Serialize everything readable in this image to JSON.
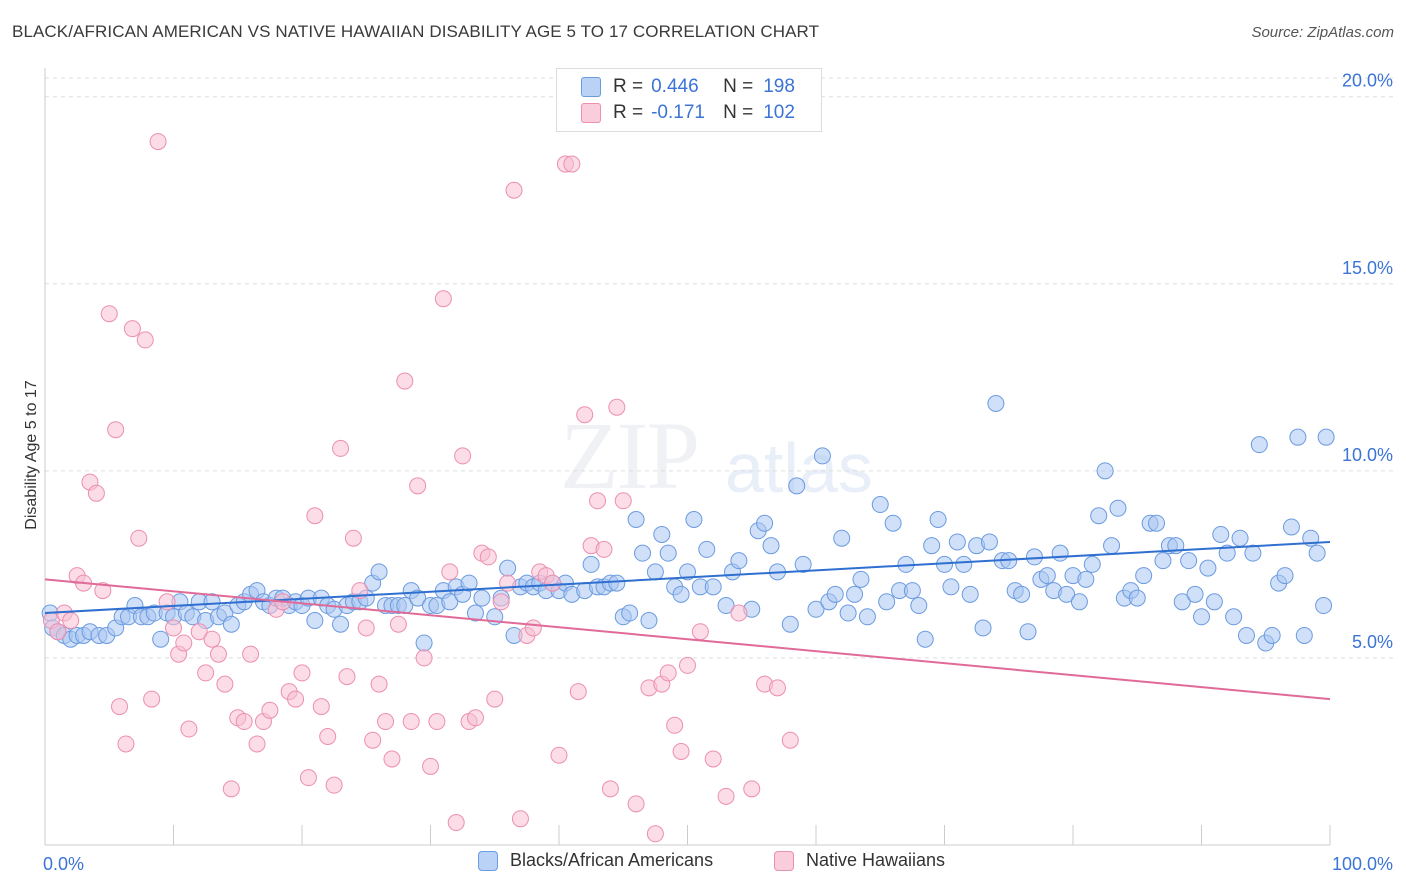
{
  "header": {
    "title": "BLACK/AFRICAN AMERICAN VS NATIVE HAWAIIAN DISABILITY AGE 5 TO 17 CORRELATION CHART",
    "source": "Source: ZipAtlas.com"
  },
  "watermark": {
    "part1": "ZIP",
    "part2": "atlas"
  },
  "legend_top": {
    "rows": [
      {
        "r_label": "R =",
        "r_value": "0.446",
        "n_label": "N =",
        "n_value": "198"
      },
      {
        "r_label": "R =",
        "r_value": "-0.171",
        "n_label": "N =",
        "n_value": "102"
      }
    ]
  },
  "colors": {
    "blue_fill": "#a9c7f2",
    "blue_stroke": "#6b9be0",
    "blue_line": "#2f6fd0",
    "pink_fill": "#f7c0d3",
    "pink_stroke": "#ec8fb0",
    "pink_line": "#e06a98",
    "tick_text": "#3b74d6",
    "grid": "#dddddd"
  },
  "chart_data": {
    "type": "scatter",
    "title": "BLACK/AFRICAN AMERICAN VS NATIVE HAWAIIAN DISABILITY AGE 5 TO 17 CORRELATION CHART",
    "xlabel": "",
    "ylabel": "Disability Age 5 to 17",
    "xlim": [
      0,
      100
    ],
    "ylim": [
      0,
      20.5
    ],
    "x_tick_labels": [
      "0.0%",
      "100.0%"
    ],
    "y_ticks": [
      5,
      10,
      15,
      20
    ],
    "y_tick_labels": [
      "5.0%",
      "10.0%",
      "15.0%",
      "20.0%"
    ],
    "grid": true,
    "legend_position": "bottom",
    "series": [
      {
        "name": "Blacks/African Americans",
        "R": 0.446,
        "N": 198,
        "trend": [
          [
            0,
            6.2
          ],
          [
            100,
            8.1
          ]
        ],
        "points": [
          [
            0.4,
            6.2
          ],
          [
            0.6,
            5.8
          ],
          [
            1.0,
            5.7
          ],
          [
            1.5,
            5.6
          ],
          [
            2.0,
            5.5
          ],
          [
            2.5,
            5.6
          ],
          [
            3.0,
            5.6
          ],
          [
            3.5,
            5.7
          ],
          [
            4.2,
            5.6
          ],
          [
            4.8,
            5.6
          ],
          [
            5.5,
            5.8
          ],
          [
            6.0,
            6.1
          ],
          [
            6.5,
            6.1
          ],
          [
            7.0,
            6.4
          ],
          [
            7.5,
            6.1
          ],
          [
            8.0,
            6.1
          ],
          [
            8.5,
            6.2
          ],
          [
            9.0,
            5.5
          ],
          [
            9.5,
            6.2
          ],
          [
            10.0,
            6.1
          ],
          [
            10.5,
            6.5
          ],
          [
            11.0,
            6.2
          ],
          [
            11.5,
            6.1
          ],
          [
            12.0,
            6.5
          ],
          [
            12.5,
            6.0
          ],
          [
            13.0,
            6.5
          ],
          [
            13.5,
            6.1
          ],
          [
            14.0,
            6.2
          ],
          [
            14.5,
            5.9
          ],
          [
            15.0,
            6.4
          ],
          [
            15.5,
            6.5
          ],
          [
            16.0,
            6.7
          ],
          [
            16.5,
            6.8
          ],
          [
            17.0,
            6.5
          ],
          [
            17.5,
            6.4
          ],
          [
            18.0,
            6.6
          ],
          [
            18.5,
            6.6
          ],
          [
            19.0,
            6.4
          ],
          [
            19.5,
            6.5
          ],
          [
            20.0,
            6.4
          ],
          [
            20.5,
            6.6
          ],
          [
            21.0,
            6.0
          ],
          [
            21.5,
            6.6
          ],
          [
            22.0,
            6.4
          ],
          [
            22.5,
            6.3
          ],
          [
            23.0,
            5.9
          ],
          [
            23.5,
            6.4
          ],
          [
            24.0,
            6.5
          ],
          [
            24.5,
            6.5
          ],
          [
            25.0,
            6.6
          ],
          [
            25.5,
            7.0
          ],
          [
            26.0,
            7.3
          ],
          [
            26.5,
            6.4
          ],
          [
            27.0,
            6.4
          ],
          [
            27.5,
            6.4
          ],
          [
            28.0,
            6.4
          ],
          [
            28.5,
            6.8
          ],
          [
            29.0,
            6.6
          ],
          [
            29.5,
            5.4
          ],
          [
            30.0,
            6.4
          ],
          [
            30.5,
            6.4
          ],
          [
            31.0,
            6.8
          ],
          [
            31.5,
            6.5
          ],
          [
            32.0,
            6.9
          ],
          [
            32.5,
            6.7
          ],
          [
            33.0,
            7.0
          ],
          [
            33.5,
            6.2
          ],
          [
            34.0,
            6.6
          ],
          [
            35.0,
            6.1
          ],
          [
            35.5,
            6.6
          ],
          [
            36.0,
            7.4
          ],
          [
            36.5,
            5.6
          ],
          [
            37.0,
            6.9
          ],
          [
            37.5,
            7.0
          ],
          [
            38.0,
            6.9
          ],
          [
            38.5,
            7.0
          ],
          [
            39.0,
            6.8
          ],
          [
            39.5,
            7.0
          ],
          [
            40.0,
            6.8
          ],
          [
            40.5,
            7.0
          ],
          [
            41.0,
            6.7
          ],
          [
            42.0,
            6.8
          ],
          [
            42.5,
            7.5
          ],
          [
            43.0,
            6.9
          ],
          [
            43.5,
            6.9
          ],
          [
            44.0,
            7.0
          ],
          [
            44.5,
            7.0
          ],
          [
            45.0,
            6.1
          ],
          [
            45.5,
            6.2
          ],
          [
            46.0,
            8.7
          ],
          [
            46.5,
            7.8
          ],
          [
            47.0,
            6.0
          ],
          [
            47.5,
            7.3
          ],
          [
            48.0,
            8.3
          ],
          [
            48.5,
            7.8
          ],
          [
            49.0,
            6.9
          ],
          [
            49.5,
            6.7
          ],
          [
            50.0,
            7.3
          ],
          [
            50.5,
            8.7
          ],
          [
            51.0,
            6.9
          ],
          [
            51.5,
            7.9
          ],
          [
            52.0,
            6.9
          ],
          [
            53.0,
            6.4
          ],
          [
            53.5,
            7.3
          ],
          [
            54.0,
            7.6
          ],
          [
            55.0,
            6.3
          ],
          [
            55.5,
            8.4
          ],
          [
            56.0,
            8.6
          ],
          [
            56.5,
            8.0
          ],
          [
            57.0,
            7.3
          ],
          [
            58.0,
            5.9
          ],
          [
            58.5,
            9.6
          ],
          [
            59.0,
            7.5
          ],
          [
            60.0,
            6.3
          ],
          [
            60.5,
            10.4
          ],
          [
            61.0,
            6.5
          ],
          [
            61.5,
            6.7
          ],
          [
            62.0,
            8.2
          ],
          [
            62.5,
            6.2
          ],
          [
            63.0,
            6.7
          ],
          [
            63.5,
            7.1
          ],
          [
            64.0,
            6.1
          ],
          [
            65.0,
            9.1
          ],
          [
            65.5,
            6.5
          ],
          [
            66.0,
            8.6
          ],
          [
            66.5,
            6.8
          ],
          [
            67.0,
            7.5
          ],
          [
            67.5,
            6.8
          ],
          [
            68.0,
            6.4
          ],
          [
            68.5,
            5.5
          ],
          [
            69.0,
            8.0
          ],
          [
            69.5,
            8.7
          ],
          [
            70.0,
            7.5
          ],
          [
            70.5,
            6.9
          ],
          [
            71.0,
            8.1
          ],
          [
            71.5,
            7.5
          ],
          [
            72.0,
            6.7
          ],
          [
            72.5,
            8.0
          ],
          [
            73.0,
            5.8
          ],
          [
            73.5,
            8.1
          ],
          [
            74.0,
            11.8
          ],
          [
            74.5,
            7.6
          ],
          [
            75.0,
            7.6
          ],
          [
            75.5,
            6.8
          ],
          [
            76.0,
            6.7
          ],
          [
            76.5,
            5.7
          ],
          [
            77.0,
            7.7
          ],
          [
            77.5,
            7.1
          ],
          [
            78.0,
            7.2
          ],
          [
            78.5,
            6.8
          ],
          [
            79.0,
            7.8
          ],
          [
            79.5,
            6.7
          ],
          [
            80.0,
            7.2
          ],
          [
            80.5,
            6.5
          ],
          [
            81.0,
            7.1
          ],
          [
            81.5,
            7.5
          ],
          [
            82.0,
            8.8
          ],
          [
            82.5,
            10.0
          ],
          [
            83.0,
            8.0
          ],
          [
            83.5,
            9.0
          ],
          [
            84.0,
            6.6
          ],
          [
            84.5,
            6.8
          ],
          [
            85.0,
            6.6
          ],
          [
            85.5,
            7.2
          ],
          [
            86.0,
            8.6
          ],
          [
            86.5,
            8.6
          ],
          [
            87.0,
            7.6
          ],
          [
            87.5,
            8.0
          ],
          [
            88.0,
            8.0
          ],
          [
            88.5,
            6.5
          ],
          [
            89.0,
            7.6
          ],
          [
            89.5,
            6.7
          ],
          [
            90.0,
            6.1
          ],
          [
            90.5,
            7.4
          ],
          [
            91.0,
            6.5
          ],
          [
            91.5,
            8.3
          ],
          [
            92.0,
            7.8
          ],
          [
            92.5,
            6.1
          ],
          [
            93.0,
            8.2
          ],
          [
            93.5,
            5.6
          ],
          [
            94.0,
            7.8
          ],
          [
            94.5,
            10.7
          ],
          [
            95.0,
            5.4
          ],
          [
            95.5,
            5.6
          ],
          [
            96.0,
            7.0
          ],
          [
            96.5,
            7.2
          ],
          [
            97.0,
            8.5
          ],
          [
            97.5,
            10.9
          ],
          [
            98.0,
            5.6
          ],
          [
            98.5,
            8.2
          ],
          [
            99.0,
            7.8
          ],
          [
            99.5,
            6.4
          ],
          [
            99.7,
            10.9
          ]
        ]
      },
      {
        "name": "Native Hawaiians",
        "R": -0.171,
        "N": 102,
        "trend": [
          [
            0,
            7.1
          ],
          [
            100,
            3.9
          ]
        ],
        "points": [
          [
            0.5,
            6.0
          ],
          [
            1.0,
            5.7
          ],
          [
            1.5,
            6.2
          ],
          [
            2.0,
            6.0
          ],
          [
            2.5,
            7.2
          ],
          [
            3.0,
            7.0
          ],
          [
            3.5,
            9.7
          ],
          [
            4.0,
            9.4
          ],
          [
            4.5,
            6.8
          ],
          [
            5.0,
            14.2
          ],
          [
            5.5,
            11.1
          ],
          [
            5.8,
            3.7
          ],
          [
            6.3,
            2.7
          ],
          [
            6.8,
            13.8
          ],
          [
            7.3,
            8.2
          ],
          [
            7.8,
            13.5
          ],
          [
            8.3,
            3.9
          ],
          [
            8.8,
            18.8
          ],
          [
            9.5,
            6.5
          ],
          [
            10.0,
            5.8
          ],
          [
            10.4,
            5.1
          ],
          [
            10.8,
            5.4
          ],
          [
            11.2,
            3.1
          ],
          [
            12.0,
            5.7
          ],
          [
            12.5,
            4.6
          ],
          [
            13.0,
            5.5
          ],
          [
            13.5,
            5.1
          ],
          [
            14.0,
            4.3
          ],
          [
            14.5,
            1.5
          ],
          [
            15.0,
            3.4
          ],
          [
            15.5,
            3.3
          ],
          [
            16.0,
            5.1
          ],
          [
            16.5,
            2.7
          ],
          [
            17.0,
            3.3
          ],
          [
            17.5,
            3.6
          ],
          [
            18.0,
            6.3
          ],
          [
            18.5,
            6.5
          ],
          [
            19.0,
            4.1
          ],
          [
            19.5,
            3.9
          ],
          [
            20.0,
            4.6
          ],
          [
            20.5,
            1.8
          ],
          [
            21.0,
            8.8
          ],
          [
            21.5,
            3.7
          ],
          [
            22.0,
            2.9
          ],
          [
            22.5,
            1.6
          ],
          [
            23.0,
            10.6
          ],
          [
            23.5,
            4.5
          ],
          [
            24.0,
            8.2
          ],
          [
            24.5,
            6.8
          ],
          [
            25.0,
            5.8
          ],
          [
            25.5,
            2.8
          ],
          [
            26.0,
            4.3
          ],
          [
            26.5,
            3.3
          ],
          [
            27.0,
            2.3
          ],
          [
            27.5,
            5.9
          ],
          [
            28.0,
            12.4
          ],
          [
            28.5,
            3.3
          ],
          [
            29.0,
            9.6
          ],
          [
            29.5,
            5.0
          ],
          [
            30.0,
            2.1
          ],
          [
            30.5,
            3.3
          ],
          [
            31.0,
            14.6
          ],
          [
            31.5,
            7.3
          ],
          [
            32.0,
            0.6
          ],
          [
            32.5,
            10.4
          ],
          [
            33.0,
            3.3
          ],
          [
            33.5,
            3.4
          ],
          [
            34.0,
            7.8
          ],
          [
            34.5,
            7.7
          ],
          [
            35.0,
            3.9
          ],
          [
            35.5,
            6.5
          ],
          [
            36.0,
            7.0
          ],
          [
            36.5,
            17.5
          ],
          [
            37.0,
            0.7
          ],
          [
            37.5,
            5.6
          ],
          [
            38.0,
            5.8
          ],
          [
            38.5,
            7.3
          ],
          [
            39.0,
            7.2
          ],
          [
            39.5,
            7.0
          ],
          [
            40.0,
            2.4
          ],
          [
            40.5,
            18.2
          ],
          [
            41.0,
            18.2
          ],
          [
            41.5,
            4.1
          ],
          [
            42.0,
            11.5
          ],
          [
            42.5,
            8.0
          ],
          [
            43.0,
            9.2
          ],
          [
            43.5,
            7.9
          ],
          [
            44.0,
            1.5
          ],
          [
            44.5,
            11.7
          ],
          [
            45.0,
            9.2
          ],
          [
            46.0,
            1.1
          ],
          [
            47.0,
            4.2
          ],
          [
            47.5,
            0.3
          ],
          [
            48.0,
            4.3
          ],
          [
            48.5,
            4.6
          ],
          [
            49.0,
            3.2
          ],
          [
            49.5,
            2.5
          ],
          [
            50.0,
            4.8
          ],
          [
            51.0,
            5.7
          ],
          [
            52.0,
            2.3
          ],
          [
            53.0,
            1.3
          ],
          [
            54.0,
            6.2
          ],
          [
            55.0,
            1.5
          ],
          [
            56.0,
            4.3
          ],
          [
            57.0,
            4.2
          ],
          [
            58.0,
            2.8
          ]
        ]
      }
    ]
  },
  "legend_bottom": {
    "items": [
      "Blacks/African Americans",
      "Native Hawaiians"
    ]
  }
}
